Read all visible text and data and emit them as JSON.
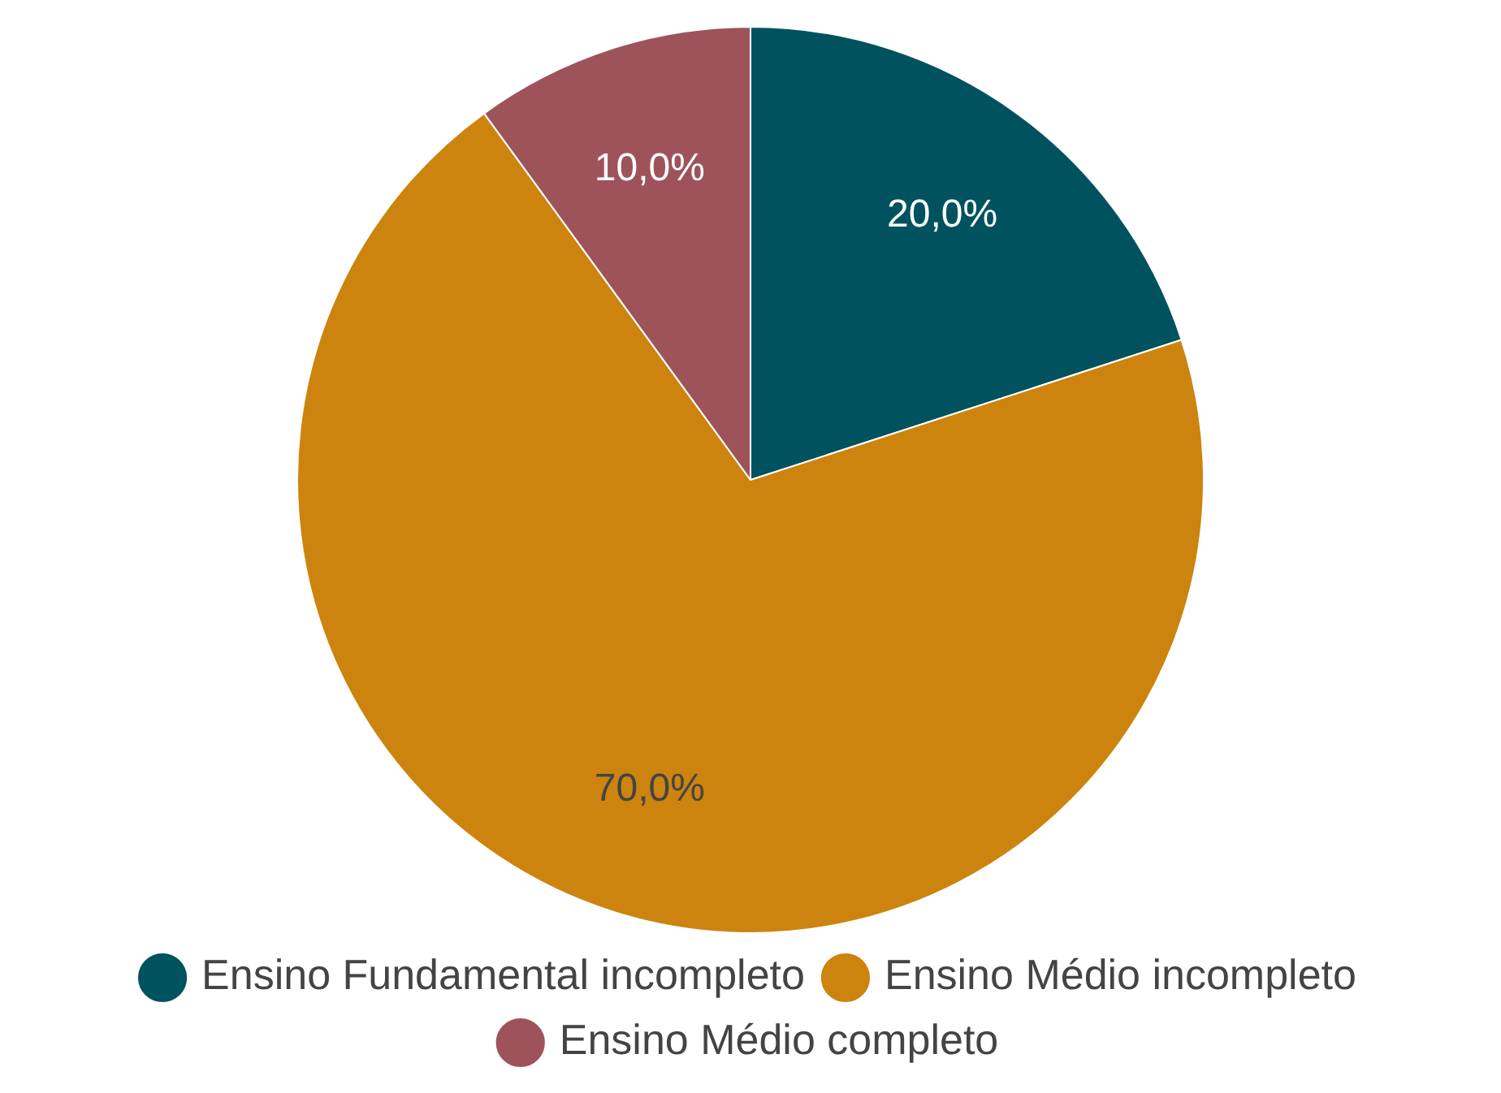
{
  "chart_data": {
    "type": "pie",
    "categories": [
      "Ensino Fundamental incompleto",
      "Ensino Médio incompleto",
      "Ensino Médio completo"
    ],
    "values": [
      20,
      70,
      10
    ],
    "colors": [
      "#00525e",
      "#cc840f",
      "#9e535b"
    ],
    "value_labels": [
      "20,0%",
      "70,0%",
      "10,0%"
    ],
    "legend": "bottom"
  }
}
